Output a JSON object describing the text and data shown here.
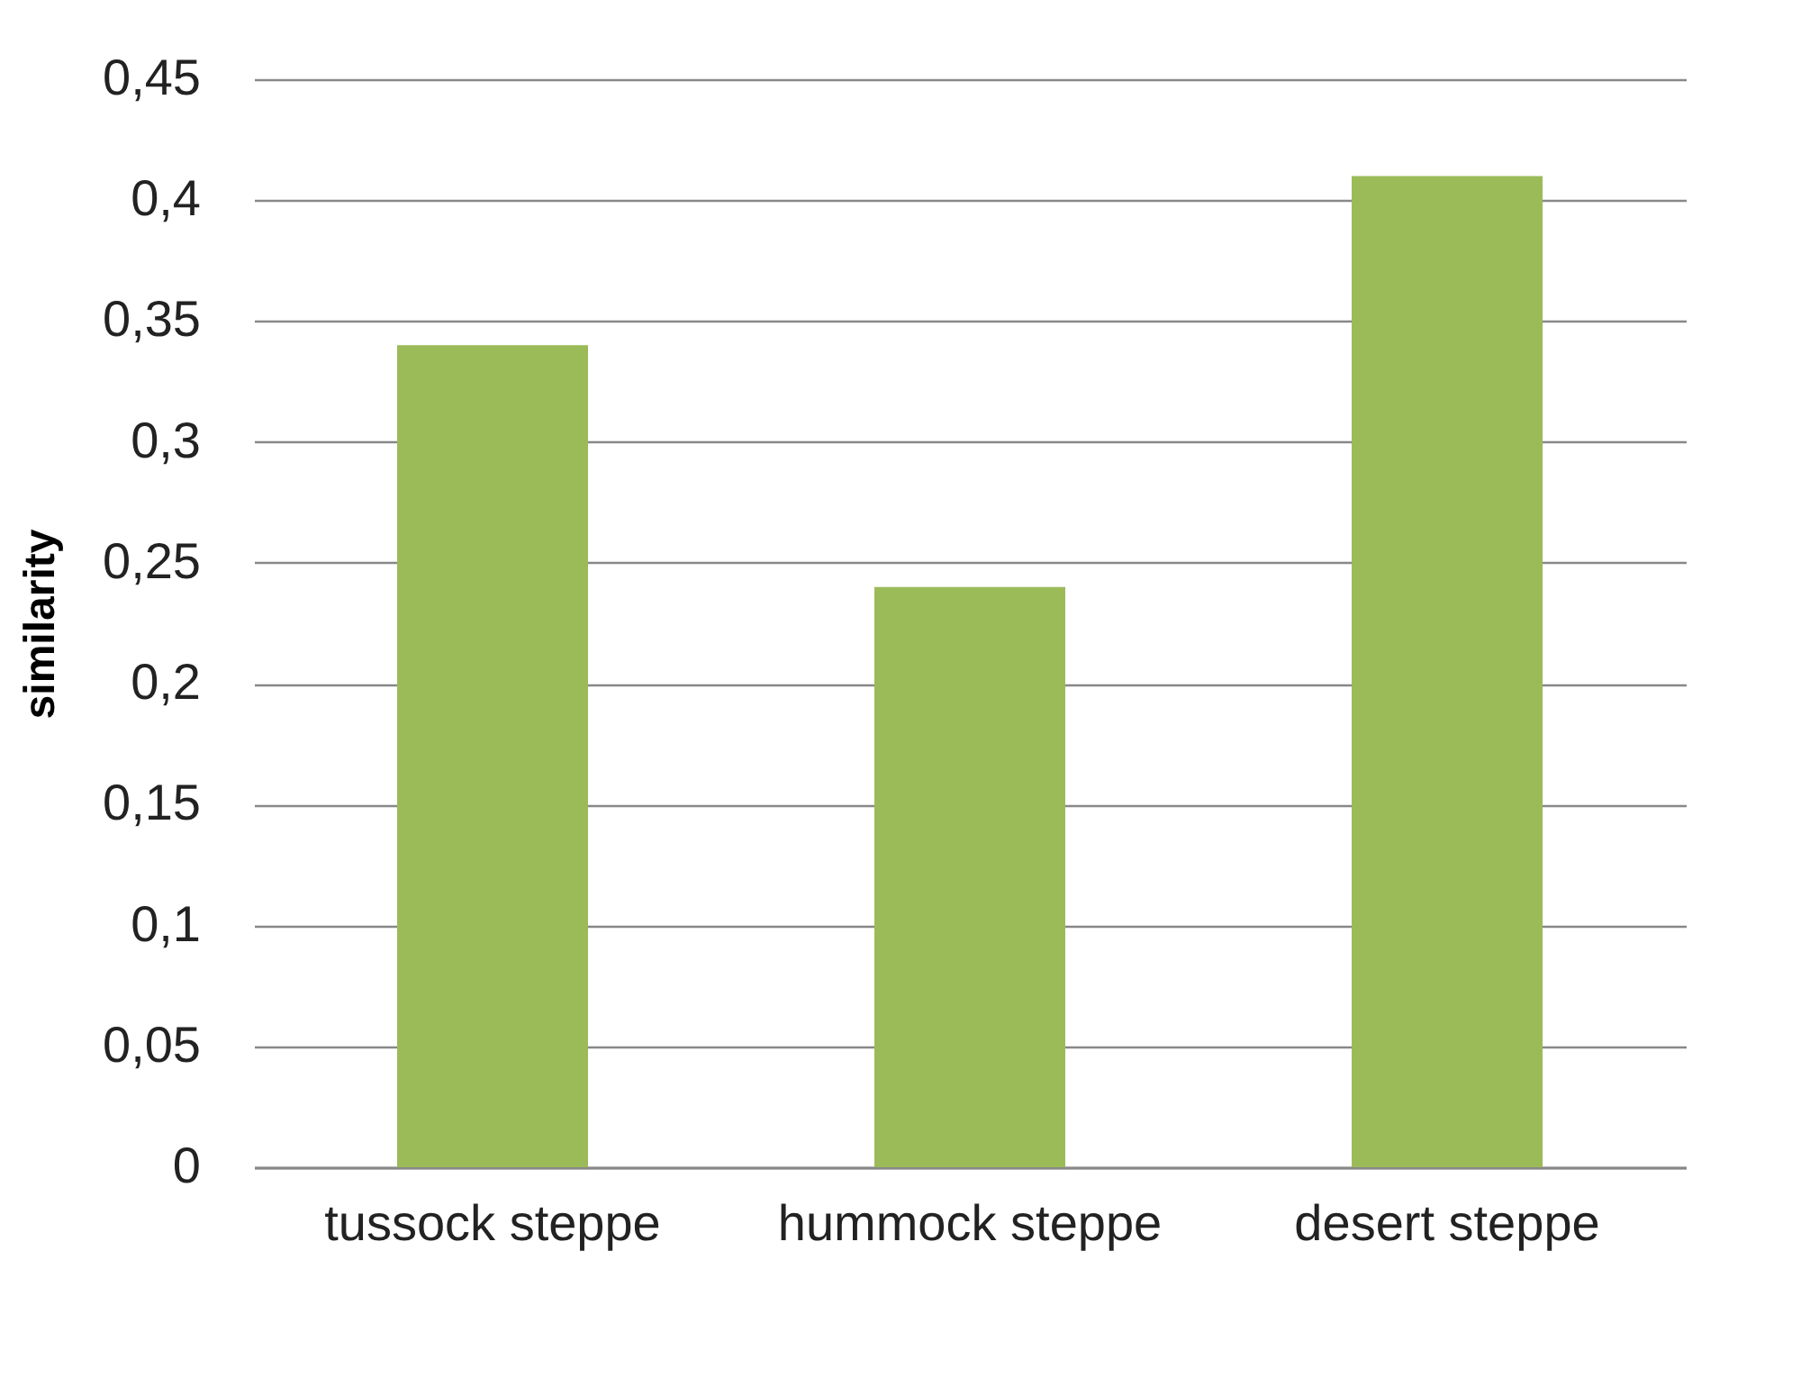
{
  "chart_data": {
    "type": "bar",
    "ylabel": "similarity",
    "categories": [
      "tussock steppe",
      "hummock steppe",
      "desert steppe"
    ],
    "values": [
      0.34,
      0.24,
      0.41
    ],
    "color": "#9bbb59",
    "ylim": [
      0,
      0.45
    ],
    "yticks": [
      0,
      {
        "value": 0.05,
        "label": "0,05"
      },
      {
        "value": 0.1,
        "label": "0,1"
      },
      {
        "value": 0.15,
        "label": "0,15"
      },
      {
        "value": 0.2,
        "label": "0,2"
      },
      {
        "value": 0.25,
        "label": "0,25"
      },
      {
        "value": 0.3,
        "label": "0,3"
      },
      {
        "value": 0.35,
        "label": "0,35"
      },
      {
        "value": 0.4,
        "label": "0,4"
      },
      {
        "value": 0.45,
        "label": "0,45"
      }
    ],
    "grid": "y"
  }
}
